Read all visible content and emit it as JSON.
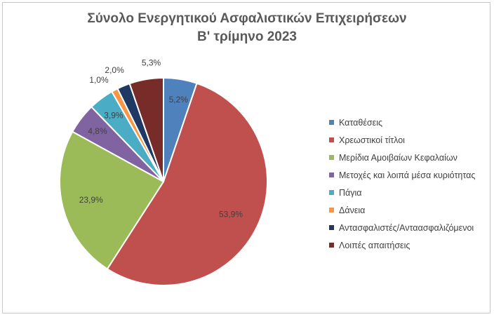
{
  "chart_data": {
    "type": "pie",
    "title": [
      "Σύνολο Ενεργητικού Ασφαλιστικών Επιχειρήσεων",
      "Β' τρίμηνο 2023"
    ],
    "unit": "%",
    "legend_position": "right",
    "series": [
      {
        "name": "Καταθέσεις",
        "value": 5.2,
        "label": "5,2%",
        "color": "#4f81bd"
      },
      {
        "name": "Χρεωστικοί τίτλοι",
        "value": 53.9,
        "label": "53,9%",
        "color": "#c0504d"
      },
      {
        "name": "Μερίδια Αμοιβαίων Κεφαλαίων",
        "value": 23.9,
        "label": "23,9%",
        "color": "#9bbb59"
      },
      {
        "name": "Μετοχές και λοιπά μέσα κυριότητας",
        "value": 4.8,
        "label": "4,8%",
        "color": "#8064a2"
      },
      {
        "name": "Πάγια",
        "value": 3.9,
        "label": "3,9%",
        "color": "#4bacc6"
      },
      {
        "name": "Δάνεια",
        "value": 1.0,
        "label": "1,0%",
        "color": "#f79646"
      },
      {
        "name": "Αντασφαλιστές/Ανταασφαλιζόμενοι",
        "value": 2.0,
        "label": "2,0%",
        "color": "#1f3864"
      },
      {
        "name": "Λοιπές απαιτήσεις",
        "value": 5.3,
        "label": "5,3%",
        "color": "#772c2a"
      }
    ]
  }
}
